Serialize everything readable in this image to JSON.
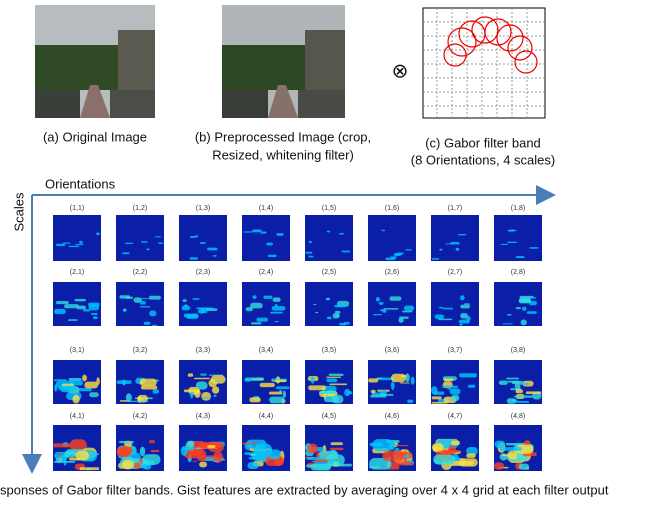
{
  "figure": {
    "captions": {
      "a": "(a) Original Image",
      "b1": "(b) Preprocessed Image (crop,",
      "b2": "Resized, whitening filter)",
      "c1": "(c) Gabor filter band",
      "c2": "(8 Orientations, 4 scales)"
    },
    "operator": "⊗",
    "x_axis_label": "Orientations",
    "y_axis_label": "Scales",
    "grid": {
      "labels": [
        [
          "(1,1)",
          "(1,2)",
          "(1,3)",
          "(1,4)",
          "(1,5)",
          "(1,6)",
          "(1,7)",
          "(1,8)"
        ],
        [
          "(2,1)",
          "(2,2)",
          "(2,3)",
          "(2,4)",
          "(2,5)",
          "(2,6)",
          "(2,7)",
          "(2,8)"
        ],
        [
          "(3,1)",
          "(3,2)",
          "(3,3)",
          "(3,4)",
          "(3,5)",
          "(3,6)",
          "(3,7)",
          "(3,8)"
        ],
        [
          "(4,1)",
          "(4,2)",
          "(4,3)",
          "(4,4)",
          "(4,5)",
          "(4,6)",
          "(4,7)",
          "(4,8)"
        ]
      ]
    },
    "bottom_caption": "sponses of Gabor filter bands. Gist features are extracted by averaging over 4 x 4 grid at each filter output"
  }
}
